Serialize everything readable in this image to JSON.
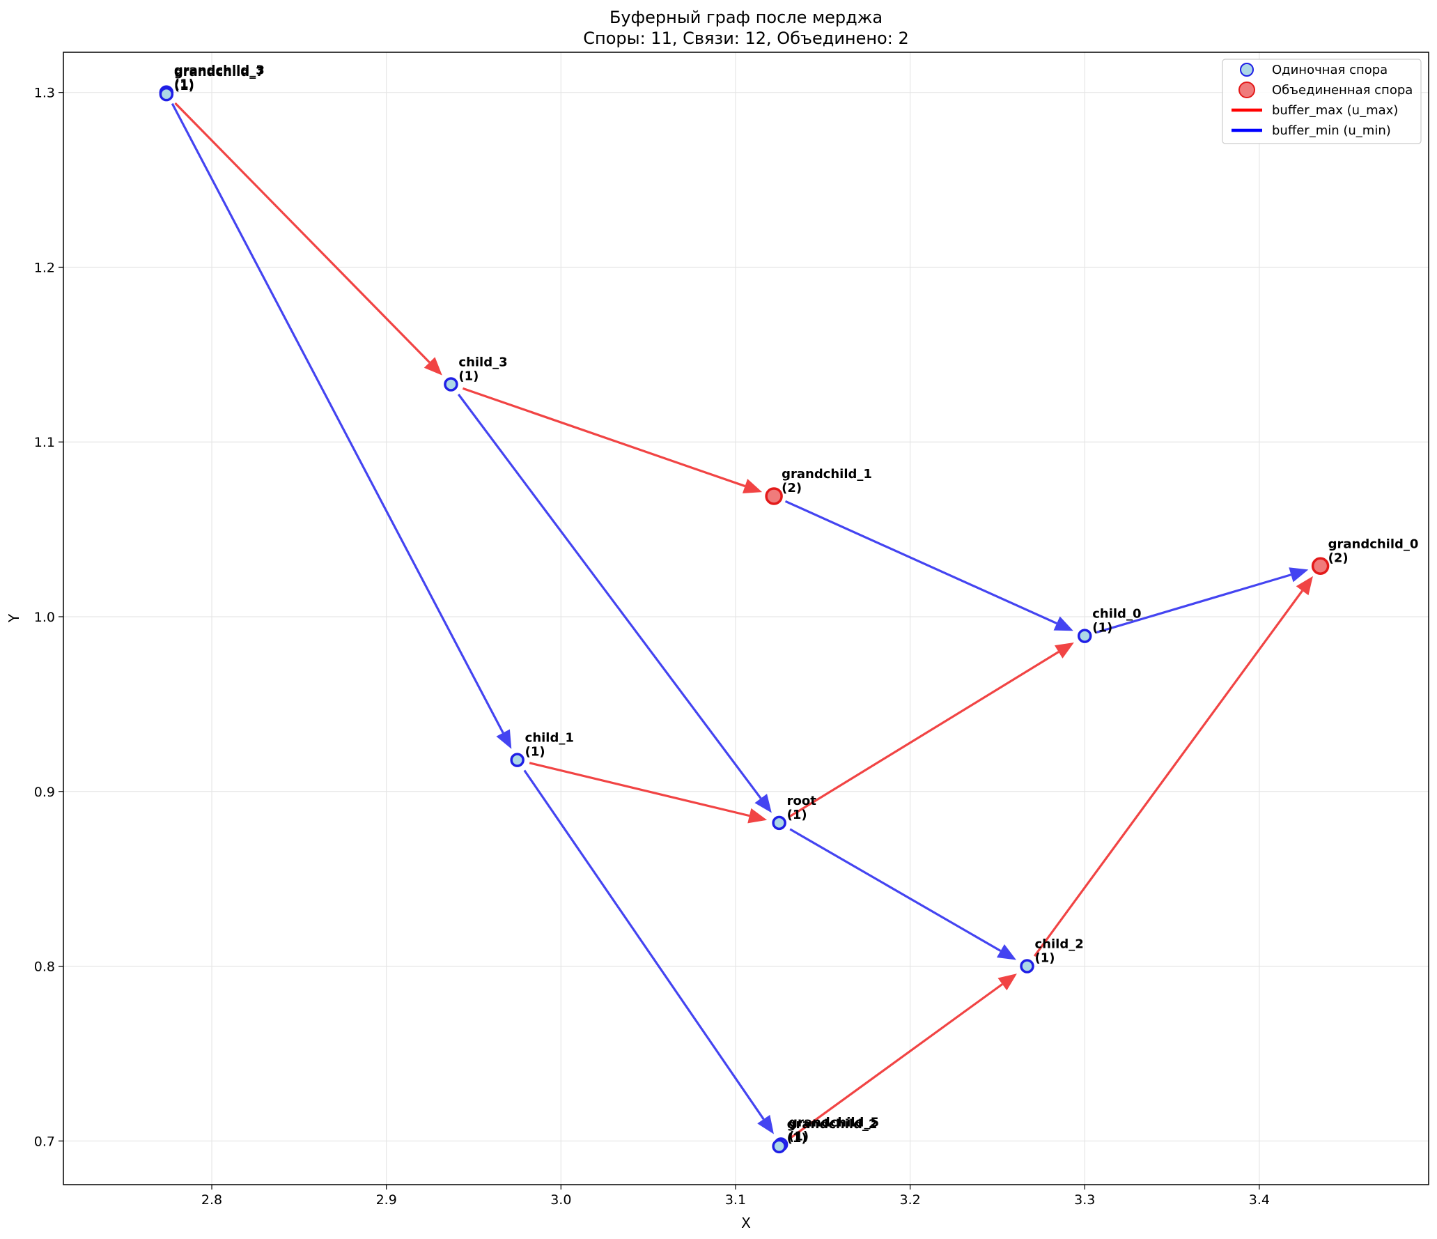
{
  "chart_data": {
    "type": "scatter",
    "title": "Буферный граф после мерджа",
    "subtitle": "Споры: 11, Связи: 12, Объединено: 2",
    "xlabel": "X",
    "ylabel": "Y",
    "xlim": [
      2.715,
      3.497
    ],
    "ylim": [
      0.675,
      1.323
    ],
    "xticks": [
      2.8,
      2.9,
      3.0,
      3.1,
      3.2,
      3.3,
      3.4
    ],
    "yticks": [
      0.7,
      0.8,
      0.9,
      1.0,
      1.1,
      1.2,
      1.3
    ],
    "grid": true,
    "legend": {
      "position": "top-right",
      "entries": [
        {
          "label": "Одиночная спора",
          "kind": "single_node"
        },
        {
          "label": "Объединенная спора",
          "kind": "merged_node"
        },
        {
          "label": "buffer_max (u_max)",
          "kind": "max_edge"
        },
        {
          "label": "buffer_min (u_min)",
          "kind": "min_edge"
        }
      ]
    },
    "colors": {
      "single_fill": "#add8e6",
      "single_edge": "#1f1fe6",
      "merged_fill": "#f07b7b",
      "merged_edge": "#e31a1a",
      "max_edge": "#f03434",
      "min_edge": "#3434f0",
      "grid": "#e6e6e6"
    },
    "nodes": [
      {
        "id": "grandchild_3",
        "label": "grandchild_3",
        "count": "(1)",
        "x": 2.774,
        "y": 1.3,
        "merged": false
      },
      {
        "id": "grandchild_7",
        "label": "grandchild_7",
        "count": "(1)",
        "x": 2.774,
        "y": 1.299,
        "merged": false
      },
      {
        "id": "child_3",
        "label": "child_3",
        "count": "(1)",
        "x": 2.937,
        "y": 1.133,
        "merged": false
      },
      {
        "id": "grandchild_1",
        "label": "grandchild_1",
        "count": "(2)",
        "x": 3.122,
        "y": 1.069,
        "merged": true
      },
      {
        "id": "grandchild_0",
        "label": "grandchild_0",
        "count": "(2)",
        "x": 3.435,
        "y": 1.029,
        "merged": true
      },
      {
        "id": "child_0",
        "label": "child_0",
        "count": "(1)",
        "x": 3.3,
        "y": 0.989,
        "merged": false
      },
      {
        "id": "child_1",
        "label": "child_1",
        "count": "(1)",
        "x": 2.975,
        "y": 0.918,
        "merged": false
      },
      {
        "id": "root",
        "label": "root",
        "count": "(1)",
        "x": 3.125,
        "y": 0.882,
        "merged": false
      },
      {
        "id": "child_2",
        "label": "child_2",
        "count": "(1)",
        "x": 3.267,
        "y": 0.8,
        "merged": false
      },
      {
        "id": "grandchild_5",
        "label": "grandchild_5",
        "count": "(1)",
        "x": 3.126,
        "y": 0.698,
        "merged": false
      },
      {
        "id": "grandchild_2",
        "label": "grandchild_2",
        "count": "(1)",
        "x": 3.125,
        "y": 0.697,
        "merged": false
      }
    ],
    "edges": [
      {
        "from": "grandchild_7",
        "to": "child_3",
        "type": "max"
      },
      {
        "from": "grandchild_3",
        "to": "child_1",
        "type": "min"
      },
      {
        "from": "child_3",
        "to": "grandchild_1",
        "type": "max"
      },
      {
        "from": "child_3",
        "to": "root",
        "type": "min"
      },
      {
        "from": "grandchild_1",
        "to": "child_0",
        "type": "min"
      },
      {
        "from": "child_0",
        "to": "grandchild_0",
        "type": "min"
      },
      {
        "from": "child_1",
        "to": "root",
        "type": "max"
      },
      {
        "from": "child_1",
        "to": "grandchild_5",
        "type": "min"
      },
      {
        "from": "root",
        "to": "child_0",
        "type": "max"
      },
      {
        "from": "root",
        "to": "child_2",
        "type": "min"
      },
      {
        "from": "grandchild_2",
        "to": "child_2",
        "type": "max"
      },
      {
        "from": "child_2",
        "to": "grandchild_0",
        "type": "max"
      }
    ]
  }
}
